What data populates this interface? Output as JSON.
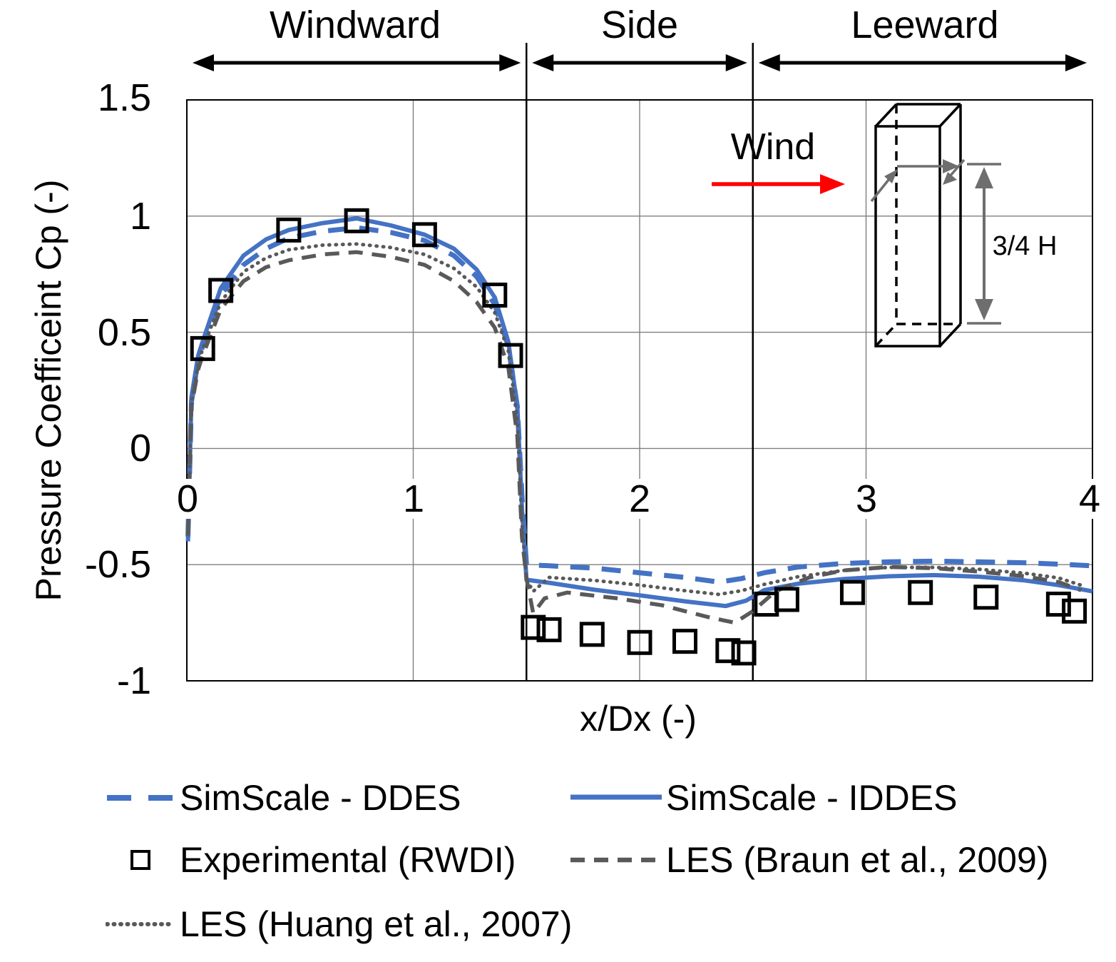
{
  "regions": [
    {
      "label": "Windward"
    },
    {
      "label": "Side"
    },
    {
      "label": "Leeward"
    }
  ],
  "axes": {
    "y_title": "Pressure Coefficeint Cp (-)",
    "x_title": "x/Dx (-)",
    "y_ticks": [
      "1.5",
      "1",
      "0.5",
      "0",
      "-0.5",
      "-1"
    ],
    "x_ticks": [
      "0",
      "1",
      "2",
      "3",
      "4"
    ]
  },
  "annotations": {
    "wind_label": "Wind",
    "dimension_label": "3/4 H"
  },
  "legend": {
    "items": [
      {
        "key": "ddes",
        "label": "SimScale - DDES"
      },
      {
        "key": "iddes",
        "label": "SimScale - IDDES"
      },
      {
        "key": "experimental",
        "label": "Experimental (RWDI)"
      },
      {
        "key": "les_braun",
        "label": "LES (Braun et al., 2009)"
      },
      {
        "key": "les_huang",
        "label": "LES (Huang et al., 2007)"
      }
    ]
  },
  "colors": {
    "simscale_blue": "#4472C4",
    "les_gray": "#595959",
    "wind_arrow_red": "#FF0000",
    "grid": "#7F7F7F",
    "axis_line": "#000000",
    "dim_gray": "#6E6E6E",
    "text": "#000000"
  },
  "chart_data": {
    "type": "line",
    "title": "",
    "xlabel": "x/Dx (-)",
    "ylabel": "Pressure Coefficeint Cp (-)",
    "xlim": [
      0,
      4
    ],
    "ylim": [
      -1,
      1.5
    ],
    "x_gridlines": [
      1,
      2,
      3
    ],
    "y_gridlines": [
      1,
      0.5,
      0,
      -0.5
    ],
    "region_boundaries_x": [
      1.5,
      2.5
    ],
    "region_names": [
      "Windward",
      "Side",
      "Leeward"
    ],
    "legend_position": "bottom",
    "series": [
      {
        "name": "SimScale - DDES",
        "style": "long-dash",
        "color": "#4472C4",
        "points": [
          [
            0.005,
            -0.38
          ],
          [
            0.02,
            0.2
          ],
          [
            0.05,
            0.38
          ],
          [
            0.07,
            0.44
          ],
          [
            0.15,
            0.66
          ],
          [
            0.25,
            0.79
          ],
          [
            0.35,
            0.86
          ],
          [
            0.45,
            0.905
          ],
          [
            0.6,
            0.935
          ],
          [
            0.75,
            0.95
          ],
          [
            0.9,
            0.93
          ],
          [
            1.05,
            0.895
          ],
          [
            1.18,
            0.83
          ],
          [
            1.28,
            0.74
          ],
          [
            1.36,
            0.62
          ],
          [
            1.42,
            0.44
          ],
          [
            1.46,
            0.18
          ],
          [
            1.48,
            -0.2
          ],
          [
            1.5,
            -0.5
          ],
          [
            1.6,
            -0.505
          ],
          [
            1.8,
            -0.515
          ],
          [
            2.0,
            -0.535
          ],
          [
            2.2,
            -0.555
          ],
          [
            2.35,
            -0.575
          ],
          [
            2.45,
            -0.56
          ],
          [
            2.55,
            -0.535
          ],
          [
            2.7,
            -0.51
          ],
          [
            2.9,
            -0.495
          ],
          [
            3.1,
            -0.488
          ],
          [
            3.3,
            -0.485
          ],
          [
            3.5,
            -0.488
          ],
          [
            3.7,
            -0.492
          ],
          [
            3.85,
            -0.498
          ],
          [
            4.0,
            -0.505
          ]
        ]
      },
      {
        "name": "SimScale - IDDES",
        "style": "solid",
        "color": "#4472C4",
        "points": [
          [
            0.005,
            -0.4
          ],
          [
            0.02,
            0.22
          ],
          [
            0.05,
            0.4
          ],
          [
            0.07,
            0.46
          ],
          [
            0.15,
            0.69
          ],
          [
            0.25,
            0.83
          ],
          [
            0.35,
            0.9
          ],
          [
            0.45,
            0.94
          ],
          [
            0.6,
            0.97
          ],
          [
            0.75,
            0.99
          ],
          [
            0.9,
            0.96
          ],
          [
            1.05,
            0.92
          ],
          [
            1.18,
            0.86
          ],
          [
            1.28,
            0.77
          ],
          [
            1.36,
            0.65
          ],
          [
            1.42,
            0.46
          ],
          [
            1.46,
            0.18
          ],
          [
            1.48,
            -0.25
          ],
          [
            1.5,
            -0.565
          ],
          [
            1.6,
            -0.578
          ],
          [
            1.8,
            -0.608
          ],
          [
            2.0,
            -0.632
          ],
          [
            2.2,
            -0.658
          ],
          [
            2.38,
            -0.678
          ],
          [
            2.47,
            -0.655
          ],
          [
            2.55,
            -0.61
          ],
          [
            2.7,
            -0.582
          ],
          [
            2.9,
            -0.562
          ],
          [
            3.1,
            -0.55
          ],
          [
            3.3,
            -0.545
          ],
          [
            3.5,
            -0.552
          ],
          [
            3.7,
            -0.568
          ],
          [
            3.85,
            -0.588
          ],
          [
            4.0,
            -0.615
          ]
        ]
      },
      {
        "name": "LES (Braun et al., 2009)",
        "style": "dash",
        "color": "#595959",
        "points": [
          [
            0.005,
            -0.37
          ],
          [
            0.02,
            0.18
          ],
          [
            0.05,
            0.34
          ],
          [
            0.07,
            0.4
          ],
          [
            0.15,
            0.6
          ],
          [
            0.25,
            0.72
          ],
          [
            0.35,
            0.78
          ],
          [
            0.45,
            0.81
          ],
          [
            0.6,
            0.835
          ],
          [
            0.75,
            0.845
          ],
          [
            0.9,
            0.825
          ],
          [
            1.05,
            0.79
          ],
          [
            1.18,
            0.72
          ],
          [
            1.28,
            0.63
          ],
          [
            1.36,
            0.52
          ],
          [
            1.42,
            0.35
          ],
          [
            1.46,
            0.05
          ],
          [
            1.48,
            -0.38
          ],
          [
            1.5,
            -0.56
          ],
          [
            1.53,
            -0.71
          ],
          [
            1.58,
            -0.645
          ],
          [
            1.68,
            -0.62
          ],
          [
            1.9,
            -0.645
          ],
          [
            2.1,
            -0.675
          ],
          [
            2.3,
            -0.725
          ],
          [
            2.42,
            -0.75
          ],
          [
            2.5,
            -0.7
          ],
          [
            2.6,
            -0.615
          ],
          [
            2.75,
            -0.555
          ],
          [
            2.9,
            -0.525
          ],
          [
            3.1,
            -0.51
          ],
          [
            3.3,
            -0.515
          ],
          [
            3.5,
            -0.53
          ],
          [
            3.7,
            -0.55
          ],
          [
            3.85,
            -0.575
          ],
          [
            3.95,
            -0.61
          ]
        ]
      },
      {
        "name": "LES (Huang et al., 2007)",
        "style": "dot",
        "color": "#595959",
        "points": [
          [
            0.005,
            -0.37
          ],
          [
            0.02,
            0.2
          ],
          [
            0.05,
            0.36
          ],
          [
            0.07,
            0.43
          ],
          [
            0.15,
            0.63
          ],
          [
            0.25,
            0.76
          ],
          [
            0.35,
            0.82
          ],
          [
            0.45,
            0.855
          ],
          [
            0.6,
            0.875
          ],
          [
            0.75,
            0.88
          ],
          [
            0.9,
            0.865
          ],
          [
            1.05,
            0.835
          ],
          [
            1.18,
            0.775
          ],
          [
            1.28,
            0.695
          ],
          [
            1.36,
            0.585
          ],
          [
            1.42,
            0.42
          ],
          [
            1.46,
            0.12
          ],
          [
            1.48,
            -0.32
          ],
          [
            1.5,
            -0.565
          ],
          [
            1.53,
            -0.615
          ],
          [
            1.6,
            -0.555
          ],
          [
            1.8,
            -0.568
          ],
          [
            2.0,
            -0.588
          ],
          [
            2.2,
            -0.612
          ],
          [
            2.35,
            -0.628
          ],
          [
            2.45,
            -0.612
          ],
          [
            2.55,
            -0.585
          ],
          [
            2.7,
            -0.552
          ],
          [
            2.9,
            -0.525
          ],
          [
            3.1,
            -0.512
          ],
          [
            3.3,
            -0.512
          ],
          [
            3.5,
            -0.52
          ],
          [
            3.7,
            -0.537
          ],
          [
            3.85,
            -0.557
          ],
          [
            3.97,
            -0.595
          ]
        ]
      }
    ],
    "scatter": [
      {
        "name": "Experimental (RWDI)",
        "marker": "open-square",
        "color": "#000000",
        "points": [
          [
            0.07,
            0.43
          ],
          [
            0.15,
            0.68
          ],
          [
            0.45,
            0.94
          ],
          [
            0.75,
            0.98
          ],
          [
            1.05,
            0.92
          ],
          [
            1.36,
            0.66
          ],
          [
            1.43,
            0.4
          ],
          [
            1.53,
            -0.77
          ],
          [
            1.6,
            -0.78
          ],
          [
            1.79,
            -0.8
          ],
          [
            2.0,
            -0.835
          ],
          [
            2.2,
            -0.83
          ],
          [
            2.39,
            -0.87
          ],
          [
            2.46,
            -0.88
          ],
          [
            2.56,
            -0.67
          ],
          [
            2.65,
            -0.65
          ],
          [
            2.94,
            -0.62
          ],
          [
            3.24,
            -0.62
          ],
          [
            3.53,
            -0.64
          ],
          [
            3.85,
            -0.67
          ],
          [
            3.92,
            -0.7
          ]
        ]
      }
    ]
  }
}
